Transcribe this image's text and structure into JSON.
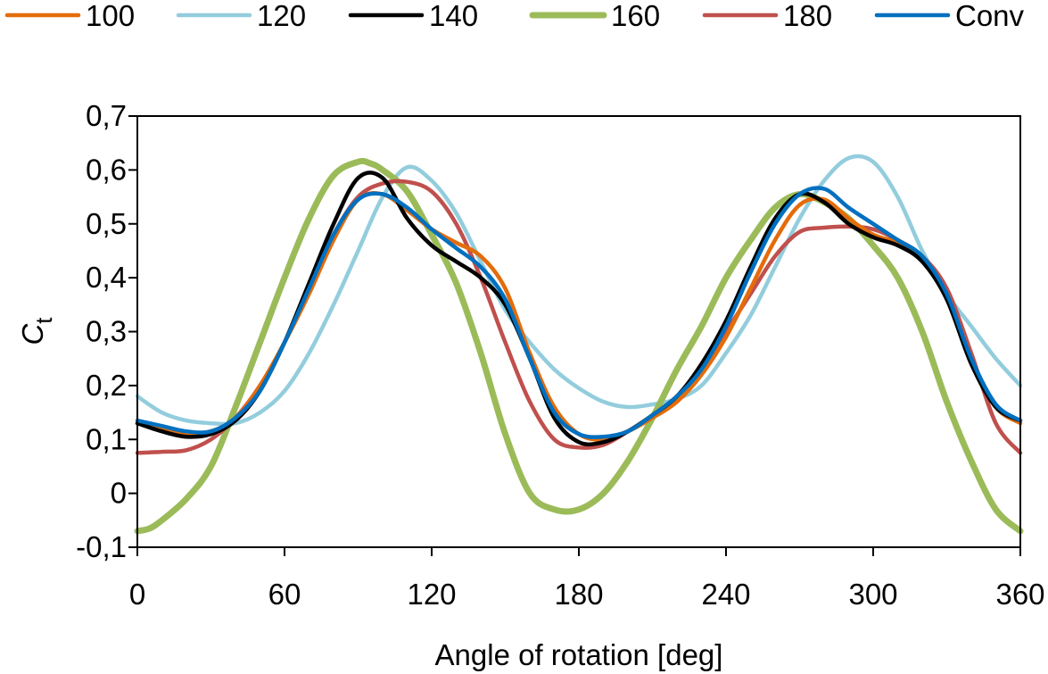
{
  "chart_data": {
    "type": "line",
    "xlabel": "Angle of rotation [deg]",
    "ylabel_main": "C",
    "ylabel_sub": "t",
    "xlim": [
      0,
      360
    ],
    "ylim": [
      -0.1,
      0.7
    ],
    "x_ticks": [
      "0",
      "60",
      "120",
      "180",
      "240",
      "300",
      "360"
    ],
    "y_ticks": [
      "-0,1",
      "0",
      "0,1",
      "0,2",
      "0,3",
      "0,4",
      "0,5",
      "0,6",
      "0,7"
    ],
    "grid": false,
    "legend_position": "top",
    "series": [
      {
        "name": "100",
        "color": "#E46C0A",
        "x": [
          0,
          10,
          20,
          30,
          40,
          50,
          60,
          70,
          80,
          90,
          100,
          110,
          120,
          130,
          140,
          150,
          160,
          170,
          180,
          190,
          200,
          210,
          220,
          230,
          240,
          250,
          260,
          270,
          280,
          290,
          300,
          310,
          320,
          330,
          340,
          350,
          360
        ],
        "y": [
          0.13,
          0.12,
          0.11,
          0.115,
          0.14,
          0.2,
          0.28,
          0.37,
          0.47,
          0.545,
          0.555,
          0.525,
          0.49,
          0.465,
          0.44,
          0.38,
          0.26,
          0.16,
          0.11,
          0.1,
          0.115,
          0.14,
          0.17,
          0.22,
          0.29,
          0.38,
          0.47,
          0.535,
          0.545,
          0.51,
          0.48,
          0.465,
          0.44,
          0.37,
          0.25,
          0.16,
          0.13
        ]
      },
      {
        "name": "120",
        "color": "#93CDDD",
        "x": [
          0,
          10,
          20,
          30,
          40,
          50,
          60,
          70,
          80,
          90,
          100,
          110,
          120,
          130,
          140,
          150,
          160,
          170,
          180,
          190,
          200,
          210,
          220,
          230,
          240,
          250,
          260,
          270,
          280,
          290,
          300,
          310,
          320,
          330,
          340,
          350,
          360
        ],
        "y": [
          0.18,
          0.15,
          0.135,
          0.13,
          0.13,
          0.15,
          0.19,
          0.26,
          0.35,
          0.45,
          0.55,
          0.605,
          0.58,
          0.52,
          0.43,
          0.34,
          0.28,
          0.23,
          0.195,
          0.17,
          0.16,
          0.165,
          0.175,
          0.2,
          0.26,
          0.33,
          0.42,
          0.51,
          0.58,
          0.622,
          0.615,
          0.55,
          0.45,
          0.37,
          0.31,
          0.25,
          0.2
        ]
      },
      {
        "name": "140",
        "color": "#000000",
        "x": [
          0,
          10,
          20,
          30,
          40,
          50,
          60,
          70,
          80,
          90,
          100,
          110,
          120,
          130,
          140,
          150,
          160,
          170,
          180,
          190,
          200,
          210,
          220,
          230,
          240,
          250,
          260,
          270,
          280,
          290,
          300,
          310,
          320,
          330,
          340,
          350,
          360
        ],
        "y": [
          0.13,
          0.115,
          0.105,
          0.11,
          0.135,
          0.19,
          0.28,
          0.39,
          0.5,
          0.585,
          0.585,
          0.51,
          0.46,
          0.43,
          0.4,
          0.35,
          0.25,
          0.14,
          0.095,
          0.095,
          0.115,
          0.145,
          0.18,
          0.24,
          0.32,
          0.42,
          0.51,
          0.555,
          0.54,
          0.5,
          0.475,
          0.46,
          0.43,
          0.36,
          0.24,
          0.16,
          0.135
        ]
      },
      {
        "name": "160",
        "color": "#9BBB59",
        "x": [
          0,
          5,
          10,
          20,
          30,
          40,
          50,
          60,
          70,
          80,
          90,
          95,
          100,
          110,
          120,
          130,
          140,
          150,
          160,
          170,
          180,
          190,
          200,
          210,
          220,
          230,
          240,
          250,
          260,
          270,
          280,
          290,
          300,
          310,
          320,
          330,
          340,
          350,
          360
        ],
        "y": [
          -0.07,
          -0.065,
          -0.05,
          -0.01,
          0.05,
          0.16,
          0.28,
          0.4,
          0.51,
          0.59,
          0.615,
          0.612,
          0.6,
          0.56,
          0.48,
          0.39,
          0.26,
          0.11,
          0.0,
          -0.03,
          -0.03,
          0.0,
          0.06,
          0.14,
          0.23,
          0.31,
          0.4,
          0.47,
          0.53,
          0.555,
          0.54,
          0.51,
          0.46,
          0.4,
          0.3,
          0.17,
          0.06,
          -0.03,
          -0.07
        ]
      },
      {
        "name": "180",
        "color": "#C0504D",
        "x": [
          0,
          10,
          20,
          30,
          40,
          50,
          60,
          70,
          80,
          90,
          100,
          110,
          120,
          130,
          140,
          150,
          160,
          170,
          180,
          190,
          200,
          210,
          220,
          230,
          240,
          250,
          260,
          270,
          280,
          290,
          300,
          310,
          320,
          330,
          340,
          350,
          360
        ],
        "y": [
          0.075,
          0.077,
          0.08,
          0.1,
          0.14,
          0.2,
          0.28,
          0.38,
          0.48,
          0.55,
          0.575,
          0.578,
          0.56,
          0.5,
          0.4,
          0.28,
          0.17,
          0.1,
          0.085,
          0.09,
          0.115,
          0.145,
          0.18,
          0.23,
          0.3,
          0.37,
          0.44,
          0.485,
          0.493,
          0.495,
          0.49,
          0.47,
          0.44,
          0.38,
          0.26,
          0.13,
          0.075
        ]
      },
      {
        "name": "Conv",
        "color": "#0070C0",
        "x": [
          0,
          10,
          20,
          30,
          40,
          50,
          60,
          70,
          80,
          90,
          100,
          110,
          120,
          130,
          140,
          150,
          160,
          170,
          180,
          190,
          200,
          210,
          220,
          230,
          240,
          250,
          260,
          270,
          280,
          290,
          300,
          310,
          320,
          330,
          340,
          350,
          360
        ],
        "y": [
          0.135,
          0.125,
          0.115,
          0.115,
          0.14,
          0.19,
          0.28,
          0.38,
          0.48,
          0.545,
          0.555,
          0.53,
          0.49,
          0.455,
          0.42,
          0.36,
          0.25,
          0.15,
          0.11,
          0.105,
          0.115,
          0.145,
          0.18,
          0.23,
          0.31,
          0.41,
          0.5,
          0.555,
          0.565,
          0.53,
          0.5,
          0.47,
          0.44,
          0.37,
          0.25,
          0.165,
          0.135
        ]
      }
    ]
  }
}
